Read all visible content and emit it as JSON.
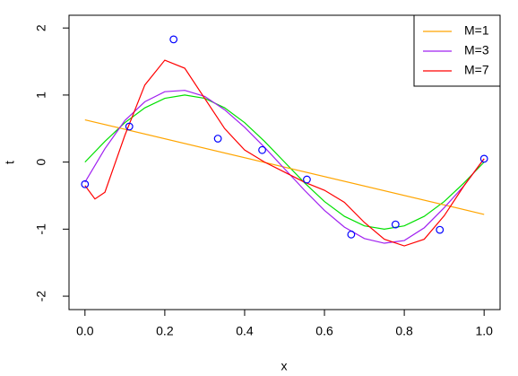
{
  "chart_data": {
    "type": "line",
    "xlabel": "x",
    "ylabel": "t",
    "xlim": [
      -0.04,
      1.04
    ],
    "ylim": [
      -2.2,
      2.19
    ],
    "xticks": [
      {
        "value": 0,
        "label": "0.0"
      },
      0.2,
      0.4,
      0.6,
      0.8,
      {
        "value": 1,
        "label": "1.0"
      }
    ],
    "yticks": [
      -2,
      -1,
      0,
      1,
      2
    ],
    "legend": "top-right",
    "points": {
      "color": "#0000ff",
      "x": [
        0,
        0.111,
        0.222,
        0.333,
        0.444,
        0.556,
        0.667,
        0.778,
        0.889,
        1
      ],
      "values": [
        -0.33,
        0.53,
        1.83,
        0.35,
        0.18,
        -0.26,
        -1.08,
        -0.93,
        -1.01,
        0.05
      ]
    },
    "series": [
      {
        "color": "#00e000",
        "x": [
          0,
          0.05,
          0.1,
          0.15,
          0.2,
          0.25,
          0.3,
          0.35,
          0.4,
          0.45,
          0.5,
          0.55,
          0.6,
          0.65,
          0.7,
          0.75,
          0.8,
          0.85,
          0.9,
          0.95,
          1
        ],
        "values": [
          0,
          0.309,
          0.588,
          0.809,
          0.951,
          1,
          0.951,
          0.809,
          0.588,
          0.309,
          0,
          -0.309,
          -0.588,
          -0.809,
          -0.951,
          -1,
          -0.951,
          -0.809,
          -0.588,
          -0.309,
          0
        ]
      },
      {
        "name": "M=1",
        "color": "#ffa500",
        "x": [
          0,
          1
        ],
        "values": [
          0.63,
          -0.78
        ]
      },
      {
        "name": "M=3",
        "color": "#a020f0",
        "x": [
          0,
          0.05,
          0.1,
          0.15,
          0.2,
          0.25,
          0.3,
          0.35,
          0.4,
          0.45,
          0.5,
          0.55,
          0.6,
          0.65,
          0.7,
          0.75,
          0.8,
          0.85,
          0.9,
          0.95,
          1
        ],
        "values": [
          -0.3,
          0.2,
          0.62,
          0.9,
          1.05,
          1.07,
          0.98,
          0.78,
          0.52,
          0.22,
          -0.1,
          -0.42,
          -0.72,
          -0.97,
          -1.14,
          -1.21,
          -1.17,
          -0.98,
          -0.68,
          -0.35,
          0.05
        ]
      },
      {
        "name": "M=7",
        "color": "#ff0000",
        "x": [
          0,
          0.025,
          0.05,
          0.1,
          0.15,
          0.2,
          0.25,
          0.3,
          0.35,
          0.4,
          0.45,
          0.5,
          0.55,
          0.6,
          0.65,
          0.7,
          0.75,
          0.8,
          0.85,
          0.9,
          0.95,
          1
        ],
        "values": [
          -0.35,
          -0.55,
          -0.45,
          0.4,
          1.15,
          1.52,
          1.4,
          0.95,
          0.5,
          0.18,
          0,
          -0.15,
          -0.3,
          -0.42,
          -0.6,
          -0.9,
          -1.15,
          -1.25,
          -1.15,
          -0.8,
          -0.35,
          0.05
        ]
      }
    ]
  }
}
